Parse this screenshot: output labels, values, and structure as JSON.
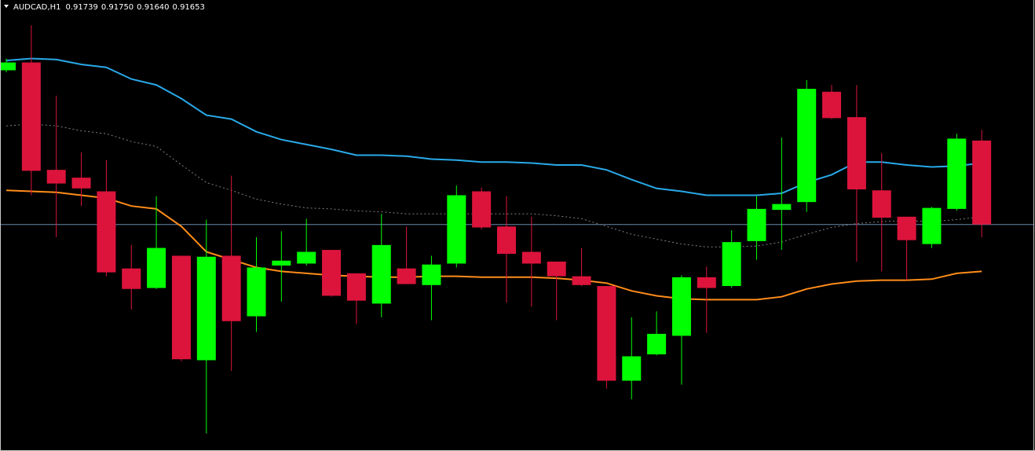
{
  "chart_data": {
    "type": "candlestick",
    "title": "AUDCAD,H1",
    "ylim": [
      0.91421,
      0.91883
    ],
    "up_color": "#00ff00",
    "down_color": "#dc143c",
    "open": [
      0.91811,
      0.91819,
      0.91709,
      0.91701,
      0.91687,
      0.91608,
      0.91588,
      0.91621,
      0.91514,
      0.91621,
      0.91559,
      0.91611,
      0.91613,
      0.91627,
      0.91603,
      0.91572,
      0.91608,
      0.91591,
      0.91613,
      0.91687,
      0.91651,
      0.91625,
      0.91615,
      0.916,
      0.9159,
      0.91493,
      0.9152,
      0.91539,
      0.91599,
      0.9159,
      0.91636,
      0.91668,
      0.91676,
      0.91789,
      0.91763,
      0.91688,
      0.91661,
      0.91633,
      0.91669,
      0.91739
    ],
    "high": [
      0.91823,
      0.91857,
      0.91785,
      0.91727,
      0.91719,
      0.91632,
      0.91682,
      0.91621,
      0.91658,
      0.91703,
      0.9164,
      0.91646,
      0.91659,
      0.91627,
      0.91603,
      0.91664,
      0.91651,
      0.91621,
      0.91693,
      0.91691,
      0.91682,
      0.91661,
      0.91615,
      0.91629,
      0.9159,
      0.91558,
      0.91564,
      0.91601,
      0.9161,
      0.91647,
      0.91682,
      0.91742,
      0.91801,
      0.91796,
      0.91796,
      0.91726,
      0.91661,
      0.91671,
      0.91746,
      0.9175
    ],
    "low": [
      0.91809,
      0.91683,
      0.9164,
      0.91672,
      0.916,
      0.91566,
      0.91587,
      0.91513,
      0.91439,
      0.91503,
      0.91543,
      0.91574,
      0.91611,
      0.91579,
      0.91551,
      0.91558,
      0.91592,
      0.91555,
      0.91609,
      0.91648,
      0.91573,
      0.91569,
      0.91555,
      0.9159,
      0.91485,
      0.91474,
      0.91519,
      0.91489,
      0.91542,
      0.91588,
      0.91617,
      0.91627,
      0.91666,
      0.91761,
      0.91615,
      0.91605,
      0.91596,
      0.91629,
      0.91667,
      0.9164
    ],
    "close": [
      0.91819,
      0.91708,
      0.91695,
      0.9169,
      0.91604,
      0.91587,
      0.91629,
      0.91515,
      0.9162,
      0.91554,
      0.91609,
      0.91616,
      0.91625,
      0.9158,
      0.91575,
      0.91632,
      0.91592,
      0.91612,
      0.91683,
      0.9165,
      0.91623,
      0.91613,
      0.916,
      0.91591,
      0.91493,
      0.91518,
      0.91541,
      0.91599,
      0.91588,
      0.91635,
      0.91669,
      0.91674,
      0.91792,
      0.91762,
      0.91689,
      0.9166,
      0.91637,
      0.9167,
      0.91741,
      0.91653
    ],
    "last_labels": {
      "open": "0.91739",
      "high": "0.91750",
      "low": "0.91640",
      "close": "0.91653"
    },
    "bid_line_color": "#6a8bb0",
    "lines": [
      {
        "color": "#29a9e8",
        "style": "solid",
        "values": [
          0.91821,
          0.91823,
          0.91822,
          0.91817,
          0.91814,
          0.91802,
          0.91796,
          0.91782,
          0.91765,
          0.91761,
          0.91748,
          0.9174,
          0.91735,
          0.9173,
          0.91724,
          0.91724,
          0.91723,
          0.9172,
          0.91719,
          0.91717,
          0.91717,
          0.91716,
          0.91714,
          0.91714,
          0.91709,
          0.91699,
          0.9169,
          0.91687,
          0.91683,
          0.91683,
          0.91683,
          0.91685,
          0.91696,
          0.91704,
          0.91717,
          0.91717,
          0.91714,
          0.91712,
          0.91713,
          0.91716
        ]
      },
      {
        "color": "#ff8c1a",
        "style": "solid",
        "values": [
          0.91688,
          0.91687,
          0.91686,
          0.91683,
          0.9168,
          0.91672,
          0.91669,
          0.91651,
          0.91625,
          0.91617,
          0.91609,
          0.91605,
          0.91603,
          0.91601,
          0.916,
          0.91599,
          0.91599,
          0.916,
          0.916,
          0.91599,
          0.91599,
          0.91599,
          0.91598,
          0.91596,
          0.91593,
          0.91585,
          0.9158,
          0.91577,
          0.91576,
          0.91576,
          0.91576,
          0.91579,
          0.91587,
          0.91592,
          0.91595,
          0.91596,
          0.91596,
          0.91597,
          0.91603,
          0.91605
        ]
      },
      {
        "color": "#808080",
        "style": "dotted",
        "values": [
          0.91754,
          0.91756,
          0.91754,
          0.91749,
          0.91746,
          0.91738,
          0.91733,
          0.91714,
          0.91696,
          0.91688,
          0.91679,
          0.91674,
          0.9167,
          0.91669,
          0.91667,
          0.91666,
          0.91664,
          0.91664,
          0.91664,
          0.91664,
          0.91664,
          0.91664,
          0.91662,
          0.91659,
          0.91651,
          0.91643,
          0.91638,
          0.91633,
          0.9163,
          0.9163,
          0.91631,
          0.91635,
          0.91643,
          0.9165,
          0.91654,
          0.91656,
          0.91657,
          0.91656,
          0.91658,
          0.91661
        ]
      }
    ]
  }
}
